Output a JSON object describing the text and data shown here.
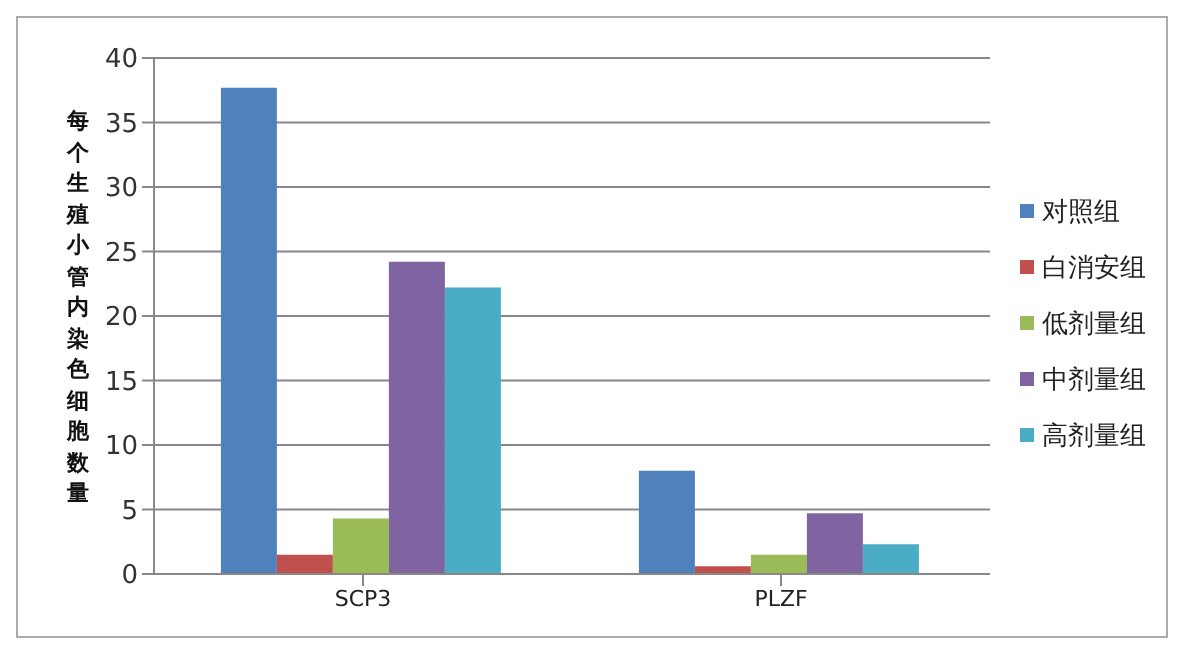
{
  "chart_data": {
    "type": "bar",
    "ylabel": "每个生殖小管内染色细胞数量",
    "categories": [
      "SCP3",
      "PLZF"
    ],
    "series": [
      {
        "name": "对照组",
        "color": "#4f81bd",
        "values": [
          37.7,
          8.0
        ]
      },
      {
        "name": "白消安组",
        "color": "#c0504d",
        "values": [
          1.5,
          0.6
        ]
      },
      {
        "name": "低剂量组",
        "color": "#9bbb59",
        "values": [
          4.3,
          1.5
        ]
      },
      {
        "name": "中剂量组",
        "color": "#8064a2",
        "values": [
          24.2,
          4.7
        ]
      },
      {
        "name": "高剂量组",
        "color": "#4bacc6",
        "values": [
          22.2,
          2.3
        ]
      }
    ],
    "ylim": [
      0,
      40
    ],
    "yticks": [
      0,
      5,
      10,
      15,
      20,
      25,
      30,
      35,
      40
    ],
    "grid": "y",
    "legend": "right"
  }
}
